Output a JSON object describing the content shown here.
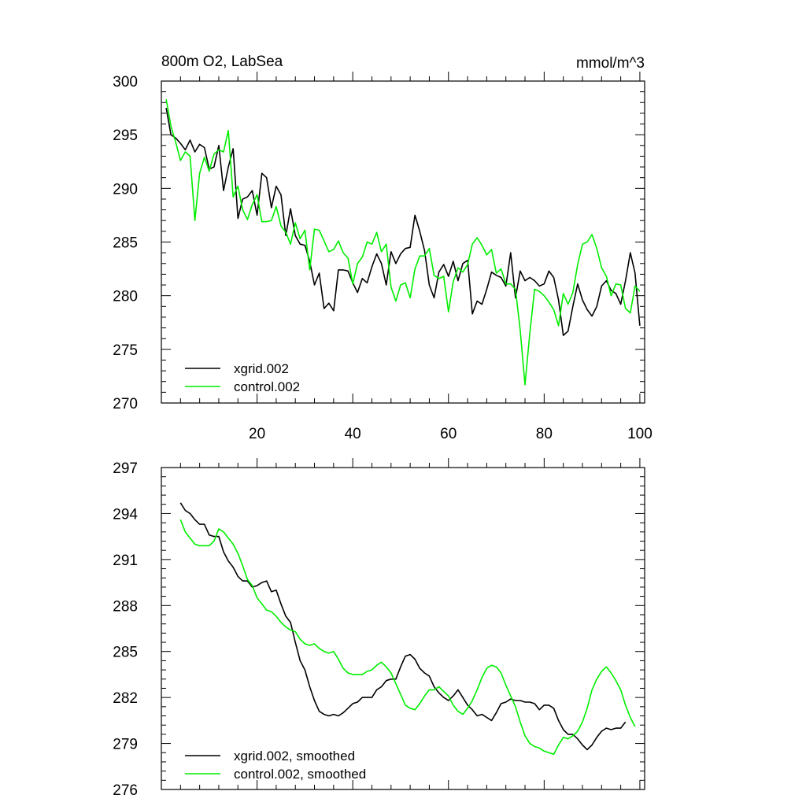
{
  "chart_data": [
    {
      "type": "line",
      "title_left": "800m O2, LabSea",
      "title_right": "mmol/m^3",
      "xlim": [
        0,
        101
      ],
      "ylim": [
        270,
        300
      ],
      "yticks": [
        270,
        275,
        280,
        285,
        290,
        295,
        300
      ],
      "yticklabels": [
        "270",
        "275",
        "280",
        "285",
        "290",
        "295",
        "300"
      ],
      "xticks": [
        20,
        40,
        60,
        80,
        100
      ],
      "xticklabels": [
        "20",
        "40",
        "60",
        "80",
        "100"
      ],
      "legend_position": "bottom-left",
      "series": [
        {
          "name": "xgrid.002",
          "color": "#000000",
          "x": [
            1,
            2,
            3,
            4,
            5,
            6,
            7,
            8,
            9,
            10,
            11,
            12,
            13,
            14,
            15,
            16,
            17,
            18,
            19,
            20,
            21,
            22,
            23,
            24,
            25,
            26,
            27,
            28,
            29,
            30,
            31,
            32,
            33,
            34,
            35,
            36,
            37,
            38,
            39,
            40,
            41,
            42,
            43,
            44,
            45,
            46,
            47,
            48,
            49,
            50,
            51,
            52,
            53,
            54,
            55,
            56,
            57,
            58,
            59,
            60,
            61,
            62,
            63,
            64,
            65,
            66,
            67,
            68,
            69,
            70,
            71,
            72,
            73,
            74,
            75,
            76,
            77,
            78,
            79,
            80,
            81,
            82,
            83,
            84,
            85,
            86,
            87,
            88,
            89,
            90,
            91,
            92,
            93,
            94,
            95,
            96,
            97,
            98,
            99,
            100
          ],
          "values": [
            297.5,
            295,
            294.7,
            294.2,
            293.6,
            294.5,
            293.4,
            294.1,
            293.8,
            291.8,
            292,
            294,
            289.8,
            292,
            293.7,
            287.2,
            289,
            289.2,
            289.8,
            287.5,
            291.4,
            291,
            288.2,
            290.2,
            289.4,
            285.6,
            288.1,
            285.6,
            284.8,
            284.7,
            283.2,
            281,
            282.1,
            278.8,
            279.3,
            278.6,
            282.4,
            282.4,
            282.3,
            281.2,
            280.3,
            281.6,
            281.2,
            282.7,
            283.9,
            283,
            281,
            284.1,
            283,
            283.9,
            284.4,
            284.5,
            287.5,
            286,
            284.2,
            281,
            279.8,
            282.2,
            282.9,
            281.8,
            283.2,
            281.4,
            283,
            283.3,
            278.3,
            279.5,
            279.2,
            280.6,
            282.2,
            281.9,
            281.7,
            280.9,
            284,
            279.8,
            282.3,
            281.4,
            281.7,
            281.4,
            280.9,
            281.1,
            282.3,
            281.7,
            279.6,
            276.3,
            276.7,
            279,
            281.1,
            279.6,
            278.7,
            278.1,
            279,
            280.9,
            281.4,
            280.5,
            280.2,
            279.2,
            281.4,
            284,
            282.1,
            277.2
          ]
        },
        {
          "name": "control.002",
          "color": "#00ee00",
          "x": [
            1,
            2,
            3,
            4,
            5,
            6,
            7,
            8,
            9,
            10,
            11,
            12,
            13,
            14,
            15,
            16,
            17,
            18,
            19,
            20,
            21,
            22,
            23,
            24,
            25,
            26,
            27,
            28,
            29,
            30,
            31,
            32,
            33,
            34,
            35,
            36,
            37,
            38,
            39,
            40,
            41,
            42,
            43,
            44,
            45,
            46,
            47,
            48,
            49,
            50,
            51,
            52,
            53,
            54,
            55,
            56,
            57,
            58,
            59,
            60,
            61,
            62,
            63,
            64,
            65,
            66,
            67,
            68,
            69,
            70,
            71,
            72,
            73,
            74,
            75,
            76,
            77,
            78,
            79,
            80,
            81,
            82,
            83,
            84,
            85,
            86,
            87,
            88,
            89,
            90,
            91,
            92,
            93,
            94,
            95,
            96,
            97,
            98,
            99,
            100
          ],
          "values": [
            298.3,
            295.8,
            294.3,
            292.6,
            293.4,
            293,
            287,
            291.4,
            292.9,
            291.6,
            293.2,
            293.6,
            293.4,
            295.4,
            289.2,
            290.2,
            288,
            287.1,
            288.5,
            289.4,
            286.9,
            286.9,
            287,
            288.3,
            286.5,
            285.9,
            284.8,
            286.8,
            285.3,
            286.1,
            282.4,
            286.2,
            286.1,
            285.1,
            284.1,
            284.3,
            285.1,
            284,
            283.5,
            281.1,
            283,
            283.6,
            285,
            284.8,
            285.9,
            284.1,
            284.8,
            280.8,
            279.5,
            281,
            281.2,
            279.8,
            282.5,
            283.7,
            283.7,
            284.4,
            281.9,
            281.6,
            281.8,
            278.5,
            281.3,
            282.6,
            282.2,
            282.9,
            284.8,
            285.4,
            284.7,
            283.8,
            284.3,
            282.1,
            282.5,
            281.1,
            281.1,
            280.6,
            276.8,
            271.7,
            276.5,
            280.6,
            280.4,
            280,
            279.4,
            278.7,
            277.2,
            280.2,
            279.2,
            280.3,
            282.9,
            284.8,
            285,
            285.7,
            284.4,
            282.6,
            281.8,
            280,
            281.1,
            281,
            278.8,
            278.4,
            280.9,
            280.4
          ]
        }
      ]
    },
    {
      "type": "line",
      "xlim": [
        0,
        101
      ],
      "ylim": [
        276,
        297
      ],
      "yticks": [
        276,
        279,
        282,
        285,
        288,
        291,
        294,
        297
      ],
      "yticklabels": [
        "276",
        "279",
        "282",
        "285",
        "288",
        "291",
        "294",
        "297"
      ],
      "xticks": [
        20,
        40,
        60,
        80,
        100
      ],
      "xticklabels": [],
      "legend_position": "bottom-left",
      "series": [
        {
          "name": "xgrid.002, smoothed",
          "color": "#000000",
          "x": [
            4,
            5,
            6,
            7,
            8,
            9,
            10,
            11,
            12,
            13,
            14,
            15,
            16,
            17,
            18,
            19,
            20,
            21,
            22,
            23,
            24,
            25,
            26,
            27,
            28,
            29,
            30,
            31,
            32,
            33,
            34,
            35,
            36,
            37,
            38,
            39,
            40,
            41,
            42,
            43,
            44,
            45,
            46,
            47,
            48,
            49,
            50,
            51,
            52,
            53,
            54,
            55,
            56,
            57,
            58,
            59,
            60,
            61,
            62,
            63,
            64,
            65,
            66,
            67,
            68,
            69,
            70,
            71,
            72,
            73,
            74,
            75,
            76,
            77,
            78,
            79,
            80,
            81,
            82,
            83,
            84,
            85,
            86,
            87,
            88,
            89,
            90,
            91,
            92,
            93,
            94,
            95,
            96,
            97
          ],
          "values": [
            294.7,
            294.2,
            294,
            293.6,
            293.3,
            293.3,
            292.6,
            292.5,
            292.5,
            291.5,
            290.9,
            290.5,
            289.9,
            289.6,
            289.6,
            289.2,
            289.3,
            289.5,
            289.6,
            288.9,
            289,
            288.1,
            287.3,
            286.9,
            285.6,
            284.4,
            283.8,
            282.7,
            281.8,
            281.1,
            280.9,
            280.8,
            280.9,
            280.8,
            281,
            281.3,
            281.6,
            281.7,
            282,
            282,
            282,
            282.5,
            282.7,
            283.1,
            283.2,
            283.2,
            284,
            284.7,
            284.8,
            284.5,
            283.9,
            283.6,
            283.4,
            282.7,
            282.3,
            282,
            281.8,
            282.1,
            282.5,
            282,
            281.5,
            281.2,
            280.8,
            280.9,
            280.7,
            280.5,
            281,
            281.6,
            281.7,
            281.9,
            281.8,
            281.8,
            281.7,
            281.7,
            281.6,
            281.2,
            281.5,
            281.5,
            281.3,
            280.5,
            279.9,
            279.6,
            279.6,
            279.3,
            278.9,
            278.6,
            278.9,
            279.4,
            279.8,
            280,
            279.9,
            280,
            280,
            280.4
          ]
        },
        {
          "name": "control.002, smoothed",
          "color": "#00ee00",
          "x": [
            4,
            5,
            6,
            7,
            8,
            9,
            10,
            11,
            12,
            13,
            14,
            15,
            16,
            17,
            18,
            19,
            20,
            21,
            22,
            23,
            24,
            25,
            26,
            27,
            28,
            29,
            30,
            31,
            32,
            33,
            34,
            35,
            36,
            37,
            38,
            39,
            40,
            41,
            42,
            43,
            44,
            45,
            46,
            47,
            48,
            49,
            50,
            51,
            52,
            53,
            54,
            55,
            56,
            57,
            58,
            59,
            60,
            61,
            62,
            63,
            64,
            65,
            66,
            67,
            68,
            69,
            70,
            71,
            72,
            73,
            74,
            75,
            76,
            77,
            78,
            79,
            80,
            81,
            82,
            83,
            84,
            85,
            86,
            87,
            88,
            89,
            90,
            91,
            92,
            93,
            94,
            95,
            96,
            97,
            98,
            99
          ],
          "values": [
            293.6,
            292.8,
            292.4,
            292,
            291.9,
            291.9,
            291.9,
            292.2,
            293,
            292.8,
            292.4,
            292,
            291.4,
            290.6,
            289.7,
            289.3,
            288.5,
            288.1,
            287.7,
            287.6,
            287.3,
            286.9,
            286.6,
            286.4,
            286.3,
            285.8,
            285.5,
            285.4,
            285.5,
            285.2,
            285,
            284.9,
            285,
            284.5,
            283.9,
            283.6,
            283.5,
            283.5,
            283.5,
            283.7,
            283.8,
            284.1,
            284.3,
            284,
            283.6,
            282.9,
            282.2,
            281.5,
            281.3,
            281.2,
            281.6,
            282.1,
            282.5,
            282.5,
            282.7,
            282.4,
            282.1,
            281.5,
            281.1,
            280.9,
            281.3,
            281.8,
            282.5,
            283.3,
            283.9,
            284.1,
            284,
            283.6,
            282.8,
            282.1,
            281.4,
            280.4,
            279.5,
            279,
            278.8,
            278.7,
            278.5,
            278.4,
            278.3,
            278.9,
            279.4,
            279.3,
            279.5,
            279.8,
            280.4,
            281.3,
            282.5,
            283.2,
            283.7,
            284,
            283.6,
            283.1,
            282.5,
            281.5,
            280.7,
            280.1
          ]
        }
      ]
    }
  ]
}
